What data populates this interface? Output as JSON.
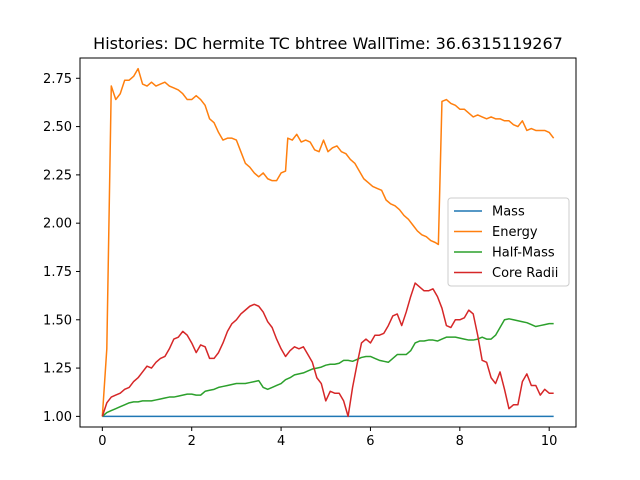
{
  "chart_data": {
    "type": "line",
    "title": "Histories: DC hermite TC bhtree WallTime: 36.6315119267",
    "xlabel": "",
    "ylabel": "",
    "xlim": [
      -0.5,
      10.6
    ],
    "ylim": [
      0.945,
      2.855
    ],
    "xticks": [
      0,
      2,
      4,
      6,
      8,
      10
    ],
    "yticks": [
      1.0,
      1.25,
      1.5,
      1.75,
      2.0,
      2.25,
      2.5,
      2.75
    ],
    "ytick_labels": [
      "1.00",
      "1.25",
      "1.50",
      "1.75",
      "2.00",
      "2.25",
      "2.50",
      "2.75"
    ],
    "grid": false,
    "legend_position": "center-right",
    "series": [
      {
        "name": "Mass",
        "color": "#1f77b4",
        "points": [
          [
            0.0,
            1.0
          ],
          [
            10.1,
            1.0
          ]
        ]
      },
      {
        "name": "Energy",
        "color": "#ff7f0e",
        "points": [
          [
            0.0,
            1.0
          ],
          [
            0.1,
            1.35
          ],
          [
            0.2,
            2.71
          ],
          [
            0.3,
            2.64
          ],
          [
            0.4,
            2.67
          ],
          [
            0.5,
            2.74
          ],
          [
            0.6,
            2.74
          ],
          [
            0.7,
            2.76
          ],
          [
            0.8,
            2.8
          ],
          [
            0.9,
            2.72
          ],
          [
            1.0,
            2.71
          ],
          [
            1.1,
            2.73
          ],
          [
            1.2,
            2.71
          ],
          [
            1.3,
            2.72
          ],
          [
            1.4,
            2.73
          ],
          [
            1.5,
            2.71
          ],
          [
            1.6,
            2.7
          ],
          [
            1.7,
            2.69
          ],
          [
            1.8,
            2.67
          ],
          [
            1.9,
            2.64
          ],
          [
            2.0,
            2.64
          ],
          [
            2.1,
            2.66
          ],
          [
            2.2,
            2.64
          ],
          [
            2.3,
            2.61
          ],
          [
            2.4,
            2.54
          ],
          [
            2.5,
            2.52
          ],
          [
            2.6,
            2.47
          ],
          [
            2.7,
            2.43
          ],
          [
            2.8,
            2.44
          ],
          [
            2.9,
            2.44
          ],
          [
            3.0,
            2.43
          ],
          [
            3.1,
            2.37
          ],
          [
            3.2,
            2.31
          ],
          [
            3.3,
            2.29
          ],
          [
            3.4,
            2.26
          ],
          [
            3.5,
            2.24
          ],
          [
            3.6,
            2.26
          ],
          [
            3.7,
            2.23
          ],
          [
            3.8,
            2.22
          ],
          [
            3.9,
            2.22
          ],
          [
            4.0,
            2.26
          ],
          [
            4.1,
            2.27
          ],
          [
            4.15,
            2.44
          ],
          [
            4.25,
            2.43
          ],
          [
            4.35,
            2.46
          ],
          [
            4.45,
            2.42
          ],
          [
            4.55,
            2.43
          ],
          [
            4.65,
            2.42
          ],
          [
            4.75,
            2.38
          ],
          [
            4.85,
            2.37
          ],
          [
            4.95,
            2.43
          ],
          [
            5.05,
            2.37
          ],
          [
            5.15,
            2.39
          ],
          [
            5.25,
            2.4
          ],
          [
            5.35,
            2.37
          ],
          [
            5.45,
            2.36
          ],
          [
            5.55,
            2.33
          ],
          [
            5.65,
            2.31
          ],
          [
            5.75,
            2.27
          ],
          [
            5.85,
            2.23
          ],
          [
            5.95,
            2.21
          ],
          [
            6.05,
            2.19
          ],
          [
            6.15,
            2.18
          ],
          [
            6.25,
            2.17
          ],
          [
            6.35,
            2.12
          ],
          [
            6.45,
            2.1
          ],
          [
            6.55,
            2.09
          ],
          [
            6.65,
            2.07
          ],
          [
            6.75,
            2.04
          ],
          [
            6.85,
            2.02
          ],
          [
            6.95,
            1.99
          ],
          [
            7.05,
            1.96
          ],
          [
            7.15,
            1.94
          ],
          [
            7.25,
            1.93
          ],
          [
            7.35,
            1.91
          ],
          [
            7.45,
            1.9
          ],
          [
            7.52,
            1.89
          ],
          [
            7.6,
            2.63
          ],
          [
            7.7,
            2.64
          ],
          [
            7.8,
            2.62
          ],
          [
            7.9,
            2.61
          ],
          [
            8.0,
            2.59
          ],
          [
            8.1,
            2.59
          ],
          [
            8.2,
            2.57
          ],
          [
            8.3,
            2.55
          ],
          [
            8.4,
            2.56
          ],
          [
            8.5,
            2.55
          ],
          [
            8.6,
            2.54
          ],
          [
            8.7,
            2.55
          ],
          [
            8.8,
            2.54
          ],
          [
            8.9,
            2.54
          ],
          [
            9.0,
            2.53
          ],
          [
            9.1,
            2.53
          ],
          [
            9.2,
            2.51
          ],
          [
            9.3,
            2.5
          ],
          [
            9.4,
            2.53
          ],
          [
            9.5,
            2.48
          ],
          [
            9.6,
            2.49
          ],
          [
            9.7,
            2.48
          ],
          [
            9.8,
            2.48
          ],
          [
            9.9,
            2.48
          ],
          [
            10.0,
            2.47
          ],
          [
            10.1,
            2.44
          ]
        ]
      },
      {
        "name": "Half-Mass",
        "color": "#2ca02c",
        "points": [
          [
            0.0,
            1.0
          ],
          [
            0.1,
            1.02
          ],
          [
            0.2,
            1.03
          ],
          [
            0.3,
            1.04
          ],
          [
            0.4,
            1.05
          ],
          [
            0.5,
            1.06
          ],
          [
            0.6,
            1.07
          ],
          [
            0.7,
            1.075
          ],
          [
            0.8,
            1.075
          ],
          [
            0.9,
            1.08
          ],
          [
            1.0,
            1.08
          ],
          [
            1.1,
            1.08
          ],
          [
            1.2,
            1.085
          ],
          [
            1.3,
            1.09
          ],
          [
            1.4,
            1.095
          ],
          [
            1.5,
            1.1
          ],
          [
            1.6,
            1.1
          ],
          [
            1.7,
            1.105
          ],
          [
            1.8,
            1.11
          ],
          [
            1.9,
            1.115
          ],
          [
            2.0,
            1.115
          ],
          [
            2.1,
            1.11
          ],
          [
            2.2,
            1.11
          ],
          [
            2.3,
            1.13
          ],
          [
            2.4,
            1.135
          ],
          [
            2.5,
            1.14
          ],
          [
            2.6,
            1.15
          ],
          [
            2.7,
            1.155
          ],
          [
            2.8,
            1.16
          ],
          [
            2.9,
            1.165
          ],
          [
            3.0,
            1.17
          ],
          [
            3.1,
            1.17
          ],
          [
            3.2,
            1.17
          ],
          [
            3.3,
            1.175
          ],
          [
            3.4,
            1.18
          ],
          [
            3.5,
            1.185
          ],
          [
            3.6,
            1.15
          ],
          [
            3.7,
            1.14
          ],
          [
            3.8,
            1.15
          ],
          [
            3.9,
            1.16
          ],
          [
            4.0,
            1.17
          ],
          [
            4.1,
            1.19
          ],
          [
            4.2,
            1.2
          ],
          [
            4.3,
            1.215
          ],
          [
            4.4,
            1.22
          ],
          [
            4.5,
            1.225
          ],
          [
            4.6,
            1.235
          ],
          [
            4.7,
            1.245
          ],
          [
            4.8,
            1.25
          ],
          [
            4.9,
            1.255
          ],
          [
            5.0,
            1.265
          ],
          [
            5.1,
            1.27
          ],
          [
            5.2,
            1.27
          ],
          [
            5.3,
            1.275
          ],
          [
            5.4,
            1.29
          ],
          [
            5.5,
            1.29
          ],
          [
            5.6,
            1.285
          ],
          [
            5.7,
            1.295
          ],
          [
            5.8,
            1.305
          ],
          [
            5.9,
            1.31
          ],
          [
            6.0,
            1.31
          ],
          [
            6.1,
            1.3
          ],
          [
            6.2,
            1.29
          ],
          [
            6.3,
            1.285
          ],
          [
            6.4,
            1.28
          ],
          [
            6.5,
            1.3
          ],
          [
            6.6,
            1.32
          ],
          [
            6.7,
            1.32
          ],
          [
            6.8,
            1.32
          ],
          [
            6.9,
            1.34
          ],
          [
            7.0,
            1.38
          ],
          [
            7.1,
            1.39
          ],
          [
            7.2,
            1.39
          ],
          [
            7.3,
            1.395
          ],
          [
            7.4,
            1.395
          ],
          [
            7.5,
            1.39
          ],
          [
            7.6,
            1.4
          ],
          [
            7.7,
            1.41
          ],
          [
            7.8,
            1.41
          ],
          [
            7.9,
            1.41
          ],
          [
            8.0,
            1.405
          ],
          [
            8.1,
            1.4
          ],
          [
            8.2,
            1.395
          ],
          [
            8.3,
            1.395
          ],
          [
            8.4,
            1.4
          ],
          [
            8.5,
            1.41
          ],
          [
            8.6,
            1.4
          ],
          [
            8.7,
            1.4
          ],
          [
            8.8,
            1.42
          ],
          [
            8.9,
            1.46
          ],
          [
            9.0,
            1.5
          ],
          [
            9.1,
            1.505
          ],
          [
            9.2,
            1.5
          ],
          [
            9.3,
            1.495
          ],
          [
            9.4,
            1.49
          ],
          [
            9.5,
            1.485
          ],
          [
            9.6,
            1.475
          ],
          [
            9.7,
            1.465
          ],
          [
            9.8,
            1.47
          ],
          [
            9.9,
            1.475
          ],
          [
            10.0,
            1.48
          ],
          [
            10.1,
            1.48
          ]
        ]
      },
      {
        "name": "Core Radii",
        "color": "#d62728",
        "points": [
          [
            0.0,
            1.0
          ],
          [
            0.1,
            1.07
          ],
          [
            0.2,
            1.1
          ],
          [
            0.3,
            1.11
          ],
          [
            0.4,
            1.12
          ],
          [
            0.5,
            1.14
          ],
          [
            0.6,
            1.15
          ],
          [
            0.7,
            1.18
          ],
          [
            0.8,
            1.2
          ],
          [
            0.9,
            1.23
          ],
          [
            1.0,
            1.26
          ],
          [
            1.1,
            1.25
          ],
          [
            1.2,
            1.28
          ],
          [
            1.3,
            1.3
          ],
          [
            1.4,
            1.31
          ],
          [
            1.5,
            1.35
          ],
          [
            1.6,
            1.4
          ],
          [
            1.7,
            1.41
          ],
          [
            1.8,
            1.44
          ],
          [
            1.9,
            1.42
          ],
          [
            2.0,
            1.38
          ],
          [
            2.1,
            1.33
          ],
          [
            2.2,
            1.37
          ],
          [
            2.3,
            1.36
          ],
          [
            2.4,
            1.3
          ],
          [
            2.5,
            1.3
          ],
          [
            2.6,
            1.33
          ],
          [
            2.7,
            1.38
          ],
          [
            2.8,
            1.44
          ],
          [
            2.9,
            1.48
          ],
          [
            3.0,
            1.5
          ],
          [
            3.1,
            1.53
          ],
          [
            3.2,
            1.55
          ],
          [
            3.3,
            1.57
          ],
          [
            3.4,
            1.58
          ],
          [
            3.5,
            1.57
          ],
          [
            3.6,
            1.54
          ],
          [
            3.7,
            1.49
          ],
          [
            3.8,
            1.46
          ],
          [
            3.9,
            1.4
          ],
          [
            4.0,
            1.35
          ],
          [
            4.1,
            1.31
          ],
          [
            4.2,
            1.34
          ],
          [
            4.3,
            1.36
          ],
          [
            4.4,
            1.35
          ],
          [
            4.5,
            1.36
          ],
          [
            4.6,
            1.32
          ],
          [
            4.7,
            1.28
          ],
          [
            4.8,
            1.2
          ],
          [
            4.9,
            1.17
          ],
          [
            5.0,
            1.08
          ],
          [
            5.1,
            1.13
          ],
          [
            5.2,
            1.12
          ],
          [
            5.3,
            1.12
          ],
          [
            5.4,
            1.08
          ],
          [
            5.5,
            1.0
          ],
          [
            5.6,
            1.15
          ],
          [
            5.7,
            1.27
          ],
          [
            5.8,
            1.38
          ],
          [
            5.9,
            1.4
          ],
          [
            6.0,
            1.38
          ],
          [
            6.1,
            1.42
          ],
          [
            6.2,
            1.42
          ],
          [
            6.3,
            1.43
          ],
          [
            6.4,
            1.47
          ],
          [
            6.5,
            1.52
          ],
          [
            6.6,
            1.53
          ],
          [
            6.7,
            1.47
          ],
          [
            6.8,
            1.54
          ],
          [
            6.9,
            1.62
          ],
          [
            7.0,
            1.69
          ],
          [
            7.1,
            1.67
          ],
          [
            7.2,
            1.65
          ],
          [
            7.3,
            1.65
          ],
          [
            7.4,
            1.66
          ],
          [
            7.5,
            1.62
          ],
          [
            7.6,
            1.56
          ],
          [
            7.7,
            1.47
          ],
          [
            7.8,
            1.46
          ],
          [
            7.9,
            1.5
          ],
          [
            8.0,
            1.5
          ],
          [
            8.1,
            1.51
          ],
          [
            8.2,
            1.55
          ],
          [
            8.3,
            1.53
          ],
          [
            8.4,
            1.42
          ],
          [
            8.5,
            1.29
          ],
          [
            8.6,
            1.28
          ],
          [
            8.7,
            1.2
          ],
          [
            8.8,
            1.17
          ],
          [
            8.9,
            1.23
          ],
          [
            9.0,
            1.14
          ],
          [
            9.1,
            1.04
          ],
          [
            9.2,
            1.06
          ],
          [
            9.3,
            1.06
          ],
          [
            9.4,
            1.18
          ],
          [
            9.5,
            1.22
          ],
          [
            9.6,
            1.16
          ],
          [
            9.7,
            1.16
          ],
          [
            9.8,
            1.11
          ],
          [
            9.9,
            1.14
          ],
          [
            10.0,
            1.12
          ],
          [
            10.1,
            1.12
          ]
        ]
      }
    ]
  }
}
